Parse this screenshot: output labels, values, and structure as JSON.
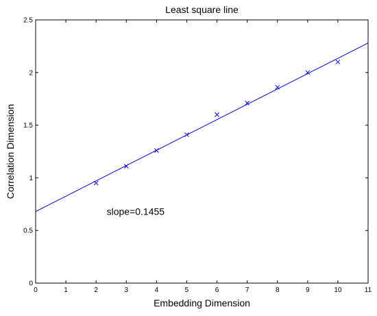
{
  "chart_data": {
    "type": "scatter",
    "title": "Least square line",
    "xlabel": "Embedding Dimension",
    "ylabel": "Correlation Dimension",
    "xlim": [
      0,
      11
    ],
    "ylim": [
      0,
      2.5
    ],
    "x_ticks": [
      "0",
      "1",
      "2",
      "3",
      "4",
      "5",
      "6",
      "7",
      "8",
      "9",
      "10",
      "11"
    ],
    "y_ticks": [
      "0",
      "0.5",
      "1",
      "1.5",
      "2",
      "2.5"
    ],
    "grid": false,
    "series": [
      {
        "marker": "x",
        "color": "#0000ff",
        "x": [
          2,
          3,
          4,
          5,
          6,
          7,
          8,
          9,
          10
        ],
        "y": [
          0.95,
          1.11,
          1.26,
          1.41,
          1.6,
          1.71,
          1.86,
          2.0,
          2.1
        ]
      }
    ],
    "fit_line": {
      "color": "#0000ff",
      "slope": 0.1455,
      "intercept": 0.68
    },
    "annotations": [
      {
        "text": "slope=0.1455",
        "x": 2.35,
        "y": 0.68
      }
    ]
  }
}
